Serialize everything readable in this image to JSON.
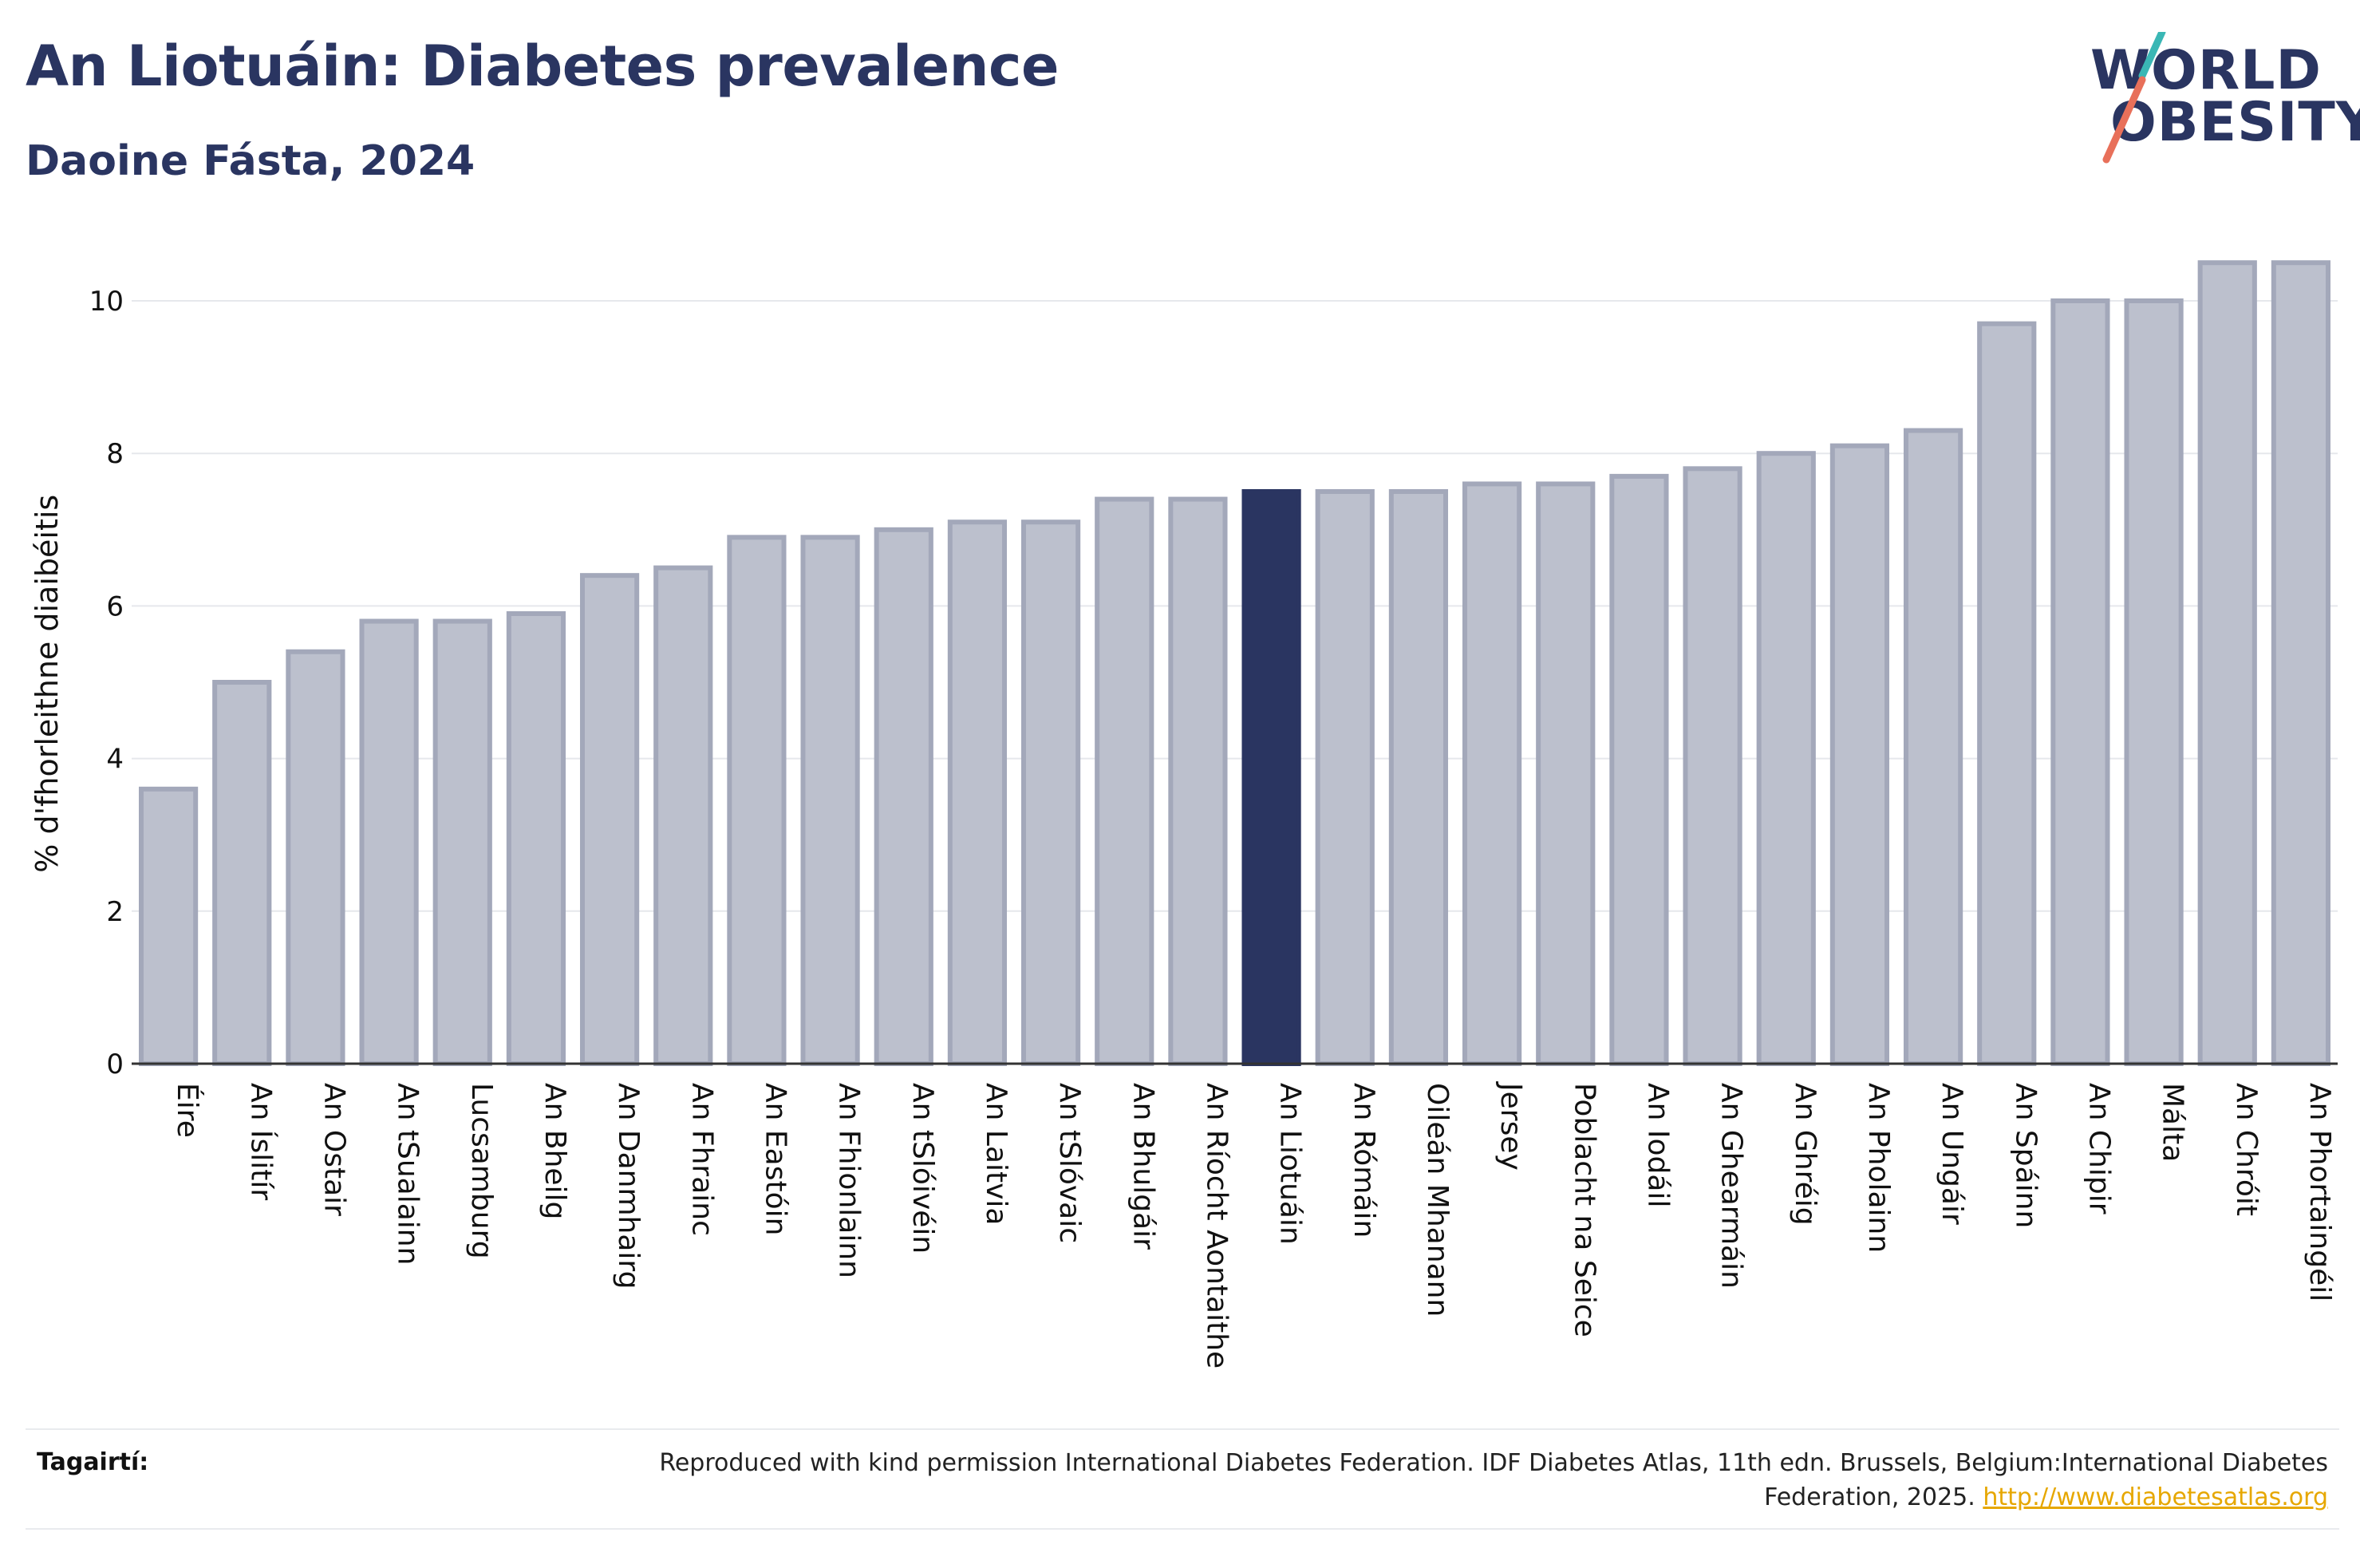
{
  "header": {
    "title": "An Liotuáin: Diabetes prevalence",
    "subtitle": "Daoine Fásta, 2024"
  },
  "logo": {
    "line1": "WORLD",
    "line2": "OBESITY",
    "slash_colors": [
      "#3ab7b5",
      "#e8705a"
    ]
  },
  "colors": {
    "bar_default": "#bcc0cd",
    "bar_default_border": "#a3a8ba",
    "bar_highlight": "#2a3561",
    "text": "#2a3561",
    "link": "#e6a700"
  },
  "chart_data": {
    "type": "bar",
    "title": "An Liotuáin: Diabetes prevalence",
    "subtitle": "Daoine Fásta, 2024",
    "ylabel": "% d'fhorleithne diaibéitis",
    "xlabel": "",
    "ylim": [
      0,
      10.8
    ],
    "yticks": [
      0,
      2,
      4,
      6,
      8,
      10
    ],
    "grid": true,
    "highlight": "An Liotuáin",
    "categories": [
      "Éire",
      "An Íslitír",
      "An Ostair",
      "An tSualainn",
      "Lucsamburg",
      "An Bheilg",
      "An Danmhairg",
      "An Fhrainc",
      "An Eastóin",
      "An Fhionlainn",
      "An tSlóivéin",
      "An Laitvia",
      "An tSlóvaic",
      "An Bhulgáir",
      "An Ríocht Aontaithe",
      "An Liotuáin",
      "An Rómáin",
      "Oileán Mhanann",
      "Jersey",
      "Poblacht na Seice",
      "An Iodáil",
      "An Ghearmáin",
      "An Ghréig",
      "An Pholainn",
      "An Ungáir",
      "An Spáinn",
      "An Chipir",
      "Málta",
      "An Chróit",
      "An Phortaingéil"
    ],
    "values": [
      3.6,
      5.0,
      5.4,
      5.8,
      5.8,
      5.9,
      6.4,
      6.5,
      6.9,
      6.9,
      7.0,
      7.1,
      7.1,
      7.4,
      7.4,
      7.5,
      7.5,
      7.5,
      7.6,
      7.6,
      7.7,
      7.8,
      8.0,
      8.1,
      8.3,
      9.7,
      10.0,
      10.0,
      10.5,
      10.5
    ]
  },
  "footer": {
    "ref_label": "Tagairtí:",
    "ref_text": "Reproduced with kind permission International Diabetes Federation. IDF Diabetes Atlas, 11th edn. Brussels, Belgium:International Diabetes Federation, 2025.",
    "ref_link": "http://www.diabetesatlas.org"
  }
}
